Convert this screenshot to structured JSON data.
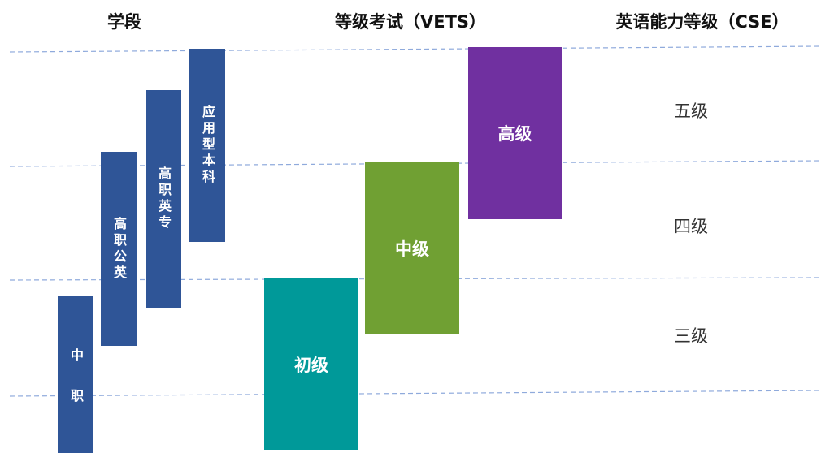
{
  "headers": {
    "stage": "学段",
    "vets": "等级考试（VETS）",
    "cse": "英语能力等级（CSE）"
  },
  "stages": [
    "中职",
    "高职公英",
    "高职英专",
    "应用型本科"
  ],
  "vets_levels": [
    "初级",
    "中级",
    "高级"
  ],
  "cse_levels": [
    "五级",
    "四级",
    "三级"
  ],
  "colors": {
    "stage_bar": "#2F5597",
    "vets_primary": "#009999",
    "vets_middle": "#70A033",
    "vets_advanced": "#7030A0",
    "guide_line": "#8FAADC"
  }
}
